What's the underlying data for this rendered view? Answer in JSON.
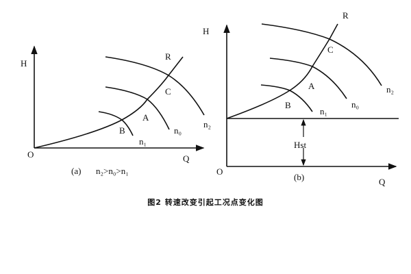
{
  "panel_a": {
    "label": "(a)",
    "relation": "n₂>n₀>n₁",
    "axis_y": "H",
    "axis_x": "Q",
    "origin": "O",
    "curve_system": "R",
    "points": {
      "C": "C",
      "A": "A",
      "B": "B"
    },
    "speed_curves": [
      "n₂",
      "n₀",
      "n₁"
    ]
  },
  "panel_b": {
    "label": "(b)",
    "axis_y": "H",
    "axis_x": "Q",
    "origin": "O",
    "curve_system": "R",
    "points": {
      "C": "C",
      "A": "A",
      "B": "B"
    },
    "speed_curves": [
      "n₂",
      "n₀",
      "n₁"
    ],
    "static_head": "Hst"
  },
  "caption": "图2 转速改变引起工况点变化图"
}
